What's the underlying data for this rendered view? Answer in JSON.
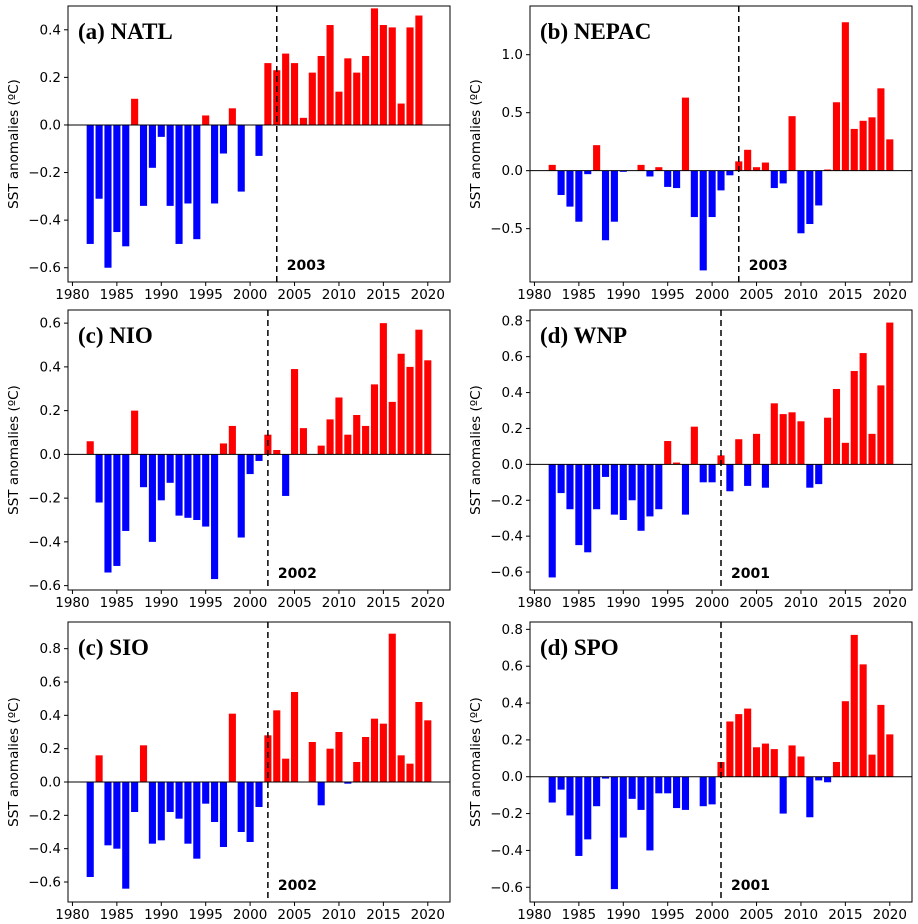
{
  "figure": {
    "ylabel": "SST anomalies (ºC)"
  },
  "colors": {
    "positive": "#ff0000",
    "negative": "#0000ff",
    "zero_line": "#000000",
    "breakpoint_line": "#000000"
  },
  "chart_data": [
    {
      "type": "bar",
      "title": "(a) NATL",
      "ylabel": "SST anomalies (ºC)",
      "years": [
        1982,
        1983,
        1984,
        1985,
        1986,
        1987,
        1988,
        1989,
        1990,
        1991,
        1992,
        1993,
        1994,
        1995,
        1996,
        1997,
        1998,
        1999,
        2000,
        2001,
        2002,
        2003,
        2004,
        2005,
        2006,
        2007,
        2008,
        2009,
        2010,
        2011,
        2012,
        2013,
        2014,
        2015,
        2016,
        2017,
        2018,
        2019,
        2020
      ],
      "values": [
        -0.5,
        -0.31,
        -0.6,
        -0.45,
        -0.51,
        0.11,
        -0.34,
        -0.18,
        -0.05,
        -0.34,
        -0.5,
        -0.33,
        -0.48,
        0.04,
        -0.33,
        -0.12,
        0.07,
        -0.28,
        0.0,
        -0.13,
        0.26,
        0.23,
        0.3,
        0.26,
        0.03,
        0.22,
        0.29,
        0.42,
        0.14,
        0.28,
        0.22,
        0.29,
        0.49,
        0.42,
        0.41,
        0.09,
        0.41,
        0.46,
        0.0
      ],
      "breakpoint_year": 2003,
      "breakpoint_label": "2003",
      "xlim": [
        1979.5,
        2022.5
      ],
      "ylim": [
        -0.66,
        0.5
      ],
      "xticks": [
        1980,
        1985,
        1990,
        1995,
        2000,
        2005,
        2010,
        2015,
        2020
      ],
      "xtick_labels": [
        "1980",
        "1985",
        "1990",
        "1995",
        "2000",
        "2005",
        "2010",
        "2015",
        "2020"
      ],
      "yticks": [
        -0.6,
        -0.4,
        -0.2,
        0.0,
        0.2,
        0.4
      ],
      "ytick_labels": [
        "−0.6",
        "−0.4",
        "−0.2",
        "0.0",
        "0.2",
        "0.4"
      ],
      "grid": false
    },
    {
      "type": "bar",
      "title": "(b) NEPAC",
      "ylabel": "SST anomalies (ºC)",
      "years": [
        1982,
        1983,
        1984,
        1985,
        1986,
        1987,
        1988,
        1989,
        1990,
        1991,
        1992,
        1993,
        1994,
        1995,
        1996,
        1997,
        1998,
        1999,
        2000,
        2001,
        2002,
        2003,
        2004,
        2005,
        2006,
        2007,
        2008,
        2009,
        2010,
        2011,
        2012,
        2013,
        2014,
        2015,
        2016,
        2017,
        2018,
        2019,
        2020
      ],
      "values": [
        0.05,
        -0.21,
        -0.31,
        -0.44,
        -0.03,
        0.22,
        -0.6,
        -0.44,
        -0.01,
        0.0,
        0.05,
        -0.05,
        0.03,
        -0.14,
        -0.15,
        0.63,
        -0.4,
        -0.86,
        -0.4,
        -0.17,
        -0.04,
        0.08,
        0.18,
        0.03,
        0.07,
        -0.15,
        -0.11,
        0.47,
        -0.54,
        -0.46,
        -0.3,
        0.01,
        0.59,
        1.28,
        0.36,
        0.43,
        0.46,
        0.71,
        0.27
      ],
      "breakpoint_year": 2003,
      "breakpoint_label": "2003",
      "xlim": [
        1979.5,
        2022.5
      ],
      "ylim": [
        -0.96,
        1.42
      ],
      "xticks": [
        1980,
        1985,
        1990,
        1995,
        2000,
        2005,
        2010,
        2015,
        2020
      ],
      "xtick_labels": [
        "1980",
        "1985",
        "1990",
        "1995",
        "2000",
        "2005",
        "2010",
        "2015",
        "2020"
      ],
      "yticks": [
        -0.5,
        0.0,
        0.5,
        1.0
      ],
      "ytick_labels": [
        "−0.5",
        "0.0",
        "0.5",
        "1.0"
      ],
      "grid": false
    },
    {
      "type": "bar",
      "title": "(c) NIO",
      "ylabel": "SST anomalies (ºC)",
      "years": [
        1982,
        1983,
        1984,
        1985,
        1986,
        1987,
        1988,
        1989,
        1990,
        1991,
        1992,
        1993,
        1994,
        1995,
        1996,
        1997,
        1998,
        1999,
        2000,
        2001,
        2002,
        2003,
        2004,
        2005,
        2006,
        2007,
        2008,
        2009,
        2010,
        2011,
        2012,
        2013,
        2014,
        2015,
        2016,
        2017,
        2018,
        2019,
        2020
      ],
      "values": [
        0.06,
        -0.22,
        -0.54,
        -0.51,
        -0.35,
        0.2,
        -0.15,
        -0.4,
        -0.21,
        -0.13,
        -0.28,
        -0.29,
        -0.3,
        -0.33,
        -0.57,
        0.05,
        0.13,
        -0.38,
        -0.09,
        -0.03,
        0.09,
        0.02,
        -0.19,
        0.39,
        0.12,
        0.0,
        0.04,
        0.16,
        0.26,
        0.09,
        0.18,
        0.13,
        0.32,
        0.6,
        0.24,
        0.46,
        0.4,
        0.57,
        0.43
      ],
      "breakpoint_year": 2002,
      "breakpoint_label": "2002",
      "xlim": [
        1979.5,
        2022.5
      ],
      "ylim": [
        -0.62,
        0.66
      ],
      "xticks": [
        1980,
        1985,
        1990,
        1995,
        2000,
        2005,
        2010,
        2015,
        2020
      ],
      "xtick_labels": [
        "1980",
        "1985",
        "1990",
        "1995",
        "2000",
        "2005",
        "2010",
        "2015",
        "2020"
      ],
      "yticks": [
        -0.6,
        -0.4,
        -0.2,
        0.0,
        0.2,
        0.4,
        0.6
      ],
      "ytick_labels": [
        "−0.6",
        "−0.4",
        "−0.2",
        "0.0",
        "0.2",
        "0.4",
        "0.6"
      ],
      "grid": false
    },
    {
      "type": "bar",
      "title": "(d) WNP",
      "ylabel": "SST anomalies (ºC)",
      "years": [
        1982,
        1983,
        1984,
        1985,
        1986,
        1987,
        1988,
        1989,
        1990,
        1991,
        1992,
        1993,
        1994,
        1995,
        1996,
        1997,
        1998,
        1999,
        2000,
        2001,
        2002,
        2003,
        2004,
        2005,
        2006,
        2007,
        2008,
        2009,
        2010,
        2011,
        2012,
        2013,
        2014,
        2015,
        2016,
        2017,
        2018,
        2019,
        2020
      ],
      "values": [
        -0.63,
        -0.16,
        -0.25,
        -0.45,
        -0.49,
        -0.25,
        -0.07,
        -0.28,
        -0.31,
        -0.2,
        -0.37,
        -0.29,
        -0.25,
        0.13,
        0.01,
        -0.28,
        0.21,
        -0.1,
        -0.1,
        0.05,
        -0.15,
        0.14,
        -0.12,
        0.17,
        -0.13,
        0.34,
        0.28,
        0.29,
        0.24,
        -0.13,
        -0.11,
        0.26,
        0.42,
        0.12,
        0.52,
        0.62,
        0.17,
        0.44,
        0.79
      ],
      "breakpoint_year": 2001,
      "breakpoint_label": "2001",
      "xlim": [
        1979.5,
        2022.5
      ],
      "ylim": [
        -0.7,
        0.86
      ],
      "xticks": [
        1980,
        1985,
        1990,
        1995,
        2000,
        2005,
        2010,
        2015,
        2020
      ],
      "xtick_labels": [
        "1980",
        "1985",
        "1990",
        "1995",
        "2000",
        "2005",
        "2010",
        "2015",
        "2020"
      ],
      "yticks": [
        -0.6,
        -0.4,
        -0.2,
        0.0,
        0.2,
        0.4,
        0.6,
        0.8
      ],
      "ytick_labels": [
        "−0.6",
        "−0.4",
        "−0.2",
        "0.0",
        "0.2",
        "0.4",
        "0.6",
        "0.8"
      ],
      "grid": false
    },
    {
      "type": "bar",
      "title": "(c) SIO",
      "ylabel": "SST anomalies (ºC)",
      "years": [
        1982,
        1983,
        1984,
        1985,
        1986,
        1987,
        1988,
        1989,
        1990,
        1991,
        1992,
        1993,
        1994,
        1995,
        1996,
        1997,
        1998,
        1999,
        2000,
        2001,
        2002,
        2003,
        2004,
        2005,
        2006,
        2007,
        2008,
        2009,
        2010,
        2011,
        2012,
        2013,
        2014,
        2015,
        2016,
        2017,
        2018,
        2019,
        2020
      ],
      "values": [
        -0.57,
        0.16,
        -0.38,
        -0.4,
        -0.64,
        -0.18,
        0.22,
        -0.37,
        -0.35,
        -0.18,
        -0.22,
        -0.37,
        -0.46,
        -0.13,
        -0.24,
        -0.39,
        0.41,
        -0.3,
        -0.36,
        -0.15,
        0.28,
        0.43,
        0.14,
        0.54,
        0.0,
        0.24,
        -0.14,
        0.2,
        0.3,
        -0.01,
        0.12,
        0.27,
        0.38,
        0.35,
        0.89,
        0.16,
        0.11,
        0.48,
        0.37
      ],
      "breakpoint_year": 2002,
      "breakpoint_label": "2002",
      "xlim": [
        1979.5,
        2022.5
      ],
      "ylim": [
        -0.72,
        0.96
      ],
      "xticks": [
        1980,
        1985,
        1990,
        1995,
        2000,
        2005,
        2010,
        2015,
        2020
      ],
      "xtick_labels": [
        "1980",
        "1985",
        "1990",
        "1995",
        "2000",
        "2005",
        "2010",
        "2015",
        "2020"
      ],
      "yticks": [
        -0.6,
        -0.4,
        -0.2,
        0.0,
        0.2,
        0.4,
        0.6,
        0.8
      ],
      "ytick_labels": [
        "−0.6",
        "−0.4",
        "−0.2",
        "0.0",
        "0.2",
        "0.4",
        "0.6",
        "0.8"
      ],
      "grid": false
    },
    {
      "type": "bar",
      "title": "(d) SPO",
      "ylabel": "SST anomalies (ºC)",
      "years": [
        1982,
        1983,
        1984,
        1985,
        1986,
        1987,
        1988,
        1989,
        1990,
        1991,
        1992,
        1993,
        1994,
        1995,
        1996,
        1997,
        1998,
        1999,
        2000,
        2001,
        2002,
        2003,
        2004,
        2005,
        2006,
        2007,
        2008,
        2009,
        2010,
        2011,
        2012,
        2013,
        2014,
        2015,
        2016,
        2017,
        2018,
        2019,
        2020
      ],
      "values": [
        -0.14,
        -0.07,
        -0.21,
        -0.43,
        -0.34,
        -0.16,
        -0.01,
        -0.61,
        -0.33,
        -0.12,
        -0.18,
        -0.4,
        -0.09,
        -0.09,
        -0.17,
        -0.18,
        0.0,
        -0.16,
        -0.15,
        0.08,
        0.3,
        0.34,
        0.37,
        0.16,
        0.18,
        0.15,
        -0.2,
        0.17,
        0.11,
        -0.22,
        -0.02,
        -0.03,
        0.08,
        0.41,
        0.77,
        0.61,
        0.12,
        0.39,
        0.23
      ],
      "breakpoint_year": 2001,
      "breakpoint_label": "2001",
      "xlim": [
        1979.5,
        2022.5
      ],
      "ylim": [
        -0.68,
        0.84
      ],
      "xticks": [
        1980,
        1985,
        1990,
        1995,
        2000,
        2005,
        2010,
        2015,
        2020
      ],
      "xtick_labels": [
        "1980",
        "1985",
        "1990",
        "1995",
        "2000",
        "2005",
        "2010",
        "2015",
        "2020"
      ],
      "yticks": [
        -0.6,
        -0.4,
        -0.2,
        0.0,
        0.2,
        0.4,
        0.6,
        0.8
      ],
      "ytick_labels": [
        "−0.6",
        "−0.4",
        "−0.2",
        "0.0",
        "0.2",
        "0.4",
        "0.6",
        "0.8"
      ],
      "grid": false
    }
  ]
}
